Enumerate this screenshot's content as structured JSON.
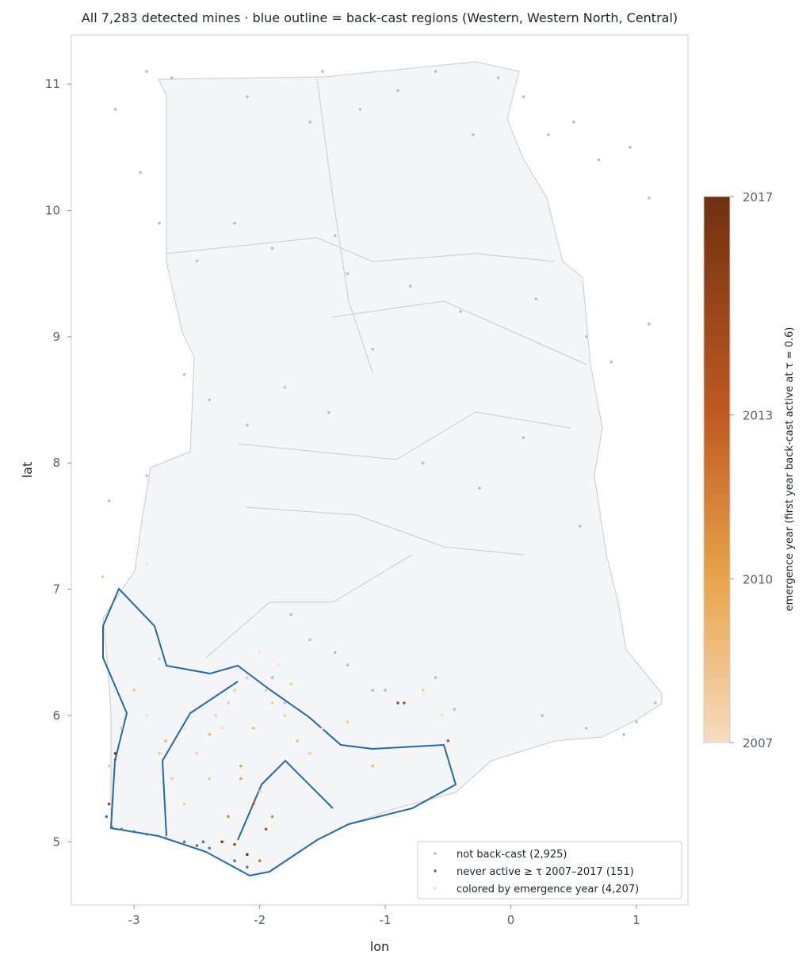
{
  "chart_data": {
    "type": "scatter",
    "title": "All 7,283 detected mines · blue outline = back-cast regions (Western, Western North, Central)",
    "xlabel": "lon",
    "ylabel": "lat",
    "xlim": [
      -3.5,
      1.41
    ],
    "ylim": [
      4.5,
      11.39
    ],
    "xticks": [
      -3,
      -2,
      -1,
      0,
      1
    ],
    "yticks": [
      5,
      6,
      7,
      8,
      9,
      10,
      11
    ],
    "grid": false,
    "legend": "lower right",
    "series": [
      {
        "name": "not back-cast (2,925)",
        "color": "#b8bec6",
        "x": [
          -2.9,
          -2.7,
          -2.1,
          -1.6,
          -1.5,
          -1.2,
          -0.9,
          -0.6,
          -0.3,
          -0.1,
          0.1,
          0.3,
          0.5,
          0.7,
          0.95,
          1.1,
          -3.15,
          -2.95,
          -2.8,
          -2.5,
          -2.2,
          -1.9,
          -1.4,
          -1.3,
          -0.8,
          -0.4,
          0.2,
          0.6,
          0.8,
          1.1,
          -2.6,
          -2.4,
          -2.1,
          -1.8,
          -1.45,
          -1.1,
          -0.7,
          -0.25,
          0.1,
          0.55,
          -3.2,
          -2.9,
          -1.75,
          -1.6,
          -1.4,
          -1.0,
          -0.6,
          -0.45,
          0.25,
          0.6,
          0.9,
          1.0,
          1.15,
          -1.9,
          -1.8,
          -1.3,
          -1.1
        ],
        "y": [
          11.1,
          11.05,
          10.9,
          10.7,
          11.1,
          10.8,
          10.95,
          11.1,
          10.6,
          11.05,
          10.9,
          10.6,
          10.7,
          10.4,
          10.5,
          10.1,
          10.8,
          10.3,
          9.9,
          9.6,
          9.9,
          9.7,
          9.8,
          9.5,
          9.4,
          9.2,
          9.3,
          9.0,
          8.8,
          9.1,
          8.7,
          8.5,
          8.3,
          8.6,
          8.4,
          8.9,
          8.0,
          7.8,
          8.2,
          7.5,
          7.7,
          7.9,
          6.8,
          6.6,
          6.5,
          6.2,
          6.3,
          6.05,
          6.0,
          5.9,
          5.85,
          5.95,
          6.1,
          6.3,
          6.1,
          6.4,
          6.2
        ]
      },
      {
        "name": "never active ≥ τ 2007–2017 (151)",
        "color": "#6b7280",
        "x": [
          -3.22,
          -3.18,
          -3.1,
          -3.0,
          -2.9,
          -2.75,
          -2.6,
          -2.5,
          -2.4,
          -2.2,
          -2.1,
          -3.15,
          -2.45
        ],
        "y": [
          5.2,
          5.12,
          5.1,
          5.08,
          5.06,
          5.03,
          5.0,
          4.97,
          4.95,
          4.85,
          4.8,
          5.65,
          5.0
        ]
      },
      {
        "name": "colored by emergence year (4,207)",
        "color": "#f6d5b5",
        "x": [
          -3.25,
          -3.2,
          -3.1,
          -3.0,
          -2.9,
          -2.8,
          -2.75,
          -2.7,
          -2.6,
          -2.5,
          -2.4,
          -2.35,
          -2.3,
          -2.25,
          -2.2,
          -2.15,
          -2.1,
          -2.05,
          -2.0,
          -1.95,
          -1.9,
          -1.85,
          -1.8,
          -1.75,
          -1.7,
          -1.6,
          -1.5,
          -1.3,
          -1.1,
          -0.9,
          -0.7,
          -0.55,
          -2.3,
          -2.2,
          -2.1,
          -2.0,
          -1.95,
          -2.25,
          -2.15,
          -2.05,
          -2.0,
          -1.9,
          -2.4,
          -2.6,
          -3.2,
          -3.15,
          -0.85,
          -0.5,
          -2.8,
          -2.9
        ],
        "y": [
          7.1,
          5.6,
          5.9,
          6.2,
          6.0,
          5.7,
          5.8,
          5.5,
          5.9,
          5.7,
          5.85,
          6.0,
          5.9,
          6.1,
          6.2,
          5.6,
          6.3,
          5.9,
          6.5,
          6.2,
          6.1,
          6.4,
          6.0,
          6.25,
          5.8,
          5.7,
          5.9,
          5.95,
          5.6,
          6.1,
          6.2,
          6.0,
          5.0,
          4.98,
          4.9,
          4.85,
          5.1,
          5.2,
          5.5,
          5.3,
          5.4,
          5.2,
          5.5,
          5.3,
          5.3,
          5.7,
          6.1,
          5.8,
          6.45,
          7.2
        ],
        "c": [
          2008,
          2008,
          2009,
          2008,
          2007,
          2008,
          2009,
          2008,
          2007,
          2008,
          2009,
          2008,
          2007,
          2008,
          2008,
          2010,
          2008,
          2009,
          2007,
          2008,
          2008,
          2007,
          2008,
          2008,
          2009,
          2008,
          2007,
          2008,
          2009,
          2014,
          2008,
          2007,
          2016,
          2015,
          2017,
          2012,
          2014,
          2011,
          2010,
          2013,
          2009,
          2011,
          2008,
          2008,
          2015,
          2016,
          2014,
          2013,
          2008,
          2007
        ]
      }
    ],
    "colorbar": {
      "label": "emergence year (first year back-cast active at τ = 0.6)",
      "lim": [
        2007,
        2017
      ],
      "ticks": [
        2007,
        2010,
        2013,
        2017
      ]
    }
  }
}
